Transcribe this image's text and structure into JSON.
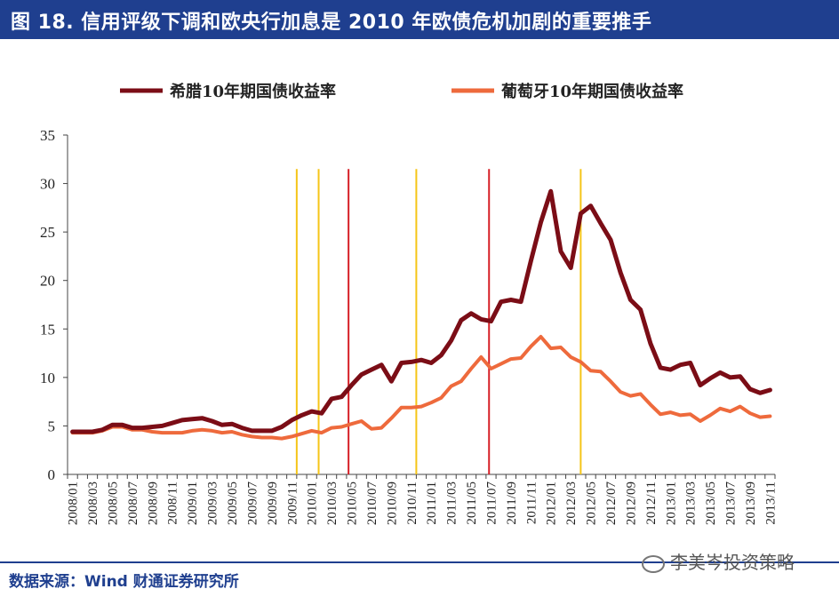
{
  "header": {
    "title": "图 18. 信用评级下调和欧央行加息是 2010 年欧债危机加剧的重要推手"
  },
  "footer": {
    "source": "数据来源：Wind  财通证券研究所",
    "watermark": "李美岑投资策略"
  },
  "colors": {
    "greece": "#7b0d16",
    "portugal": "#ee6a3c",
    "yellow_marker": "#f5c518",
    "red_marker": "#d61f26",
    "title_bg": "#1f3f8f"
  },
  "chart_data": {
    "type": "line",
    "title": "",
    "xlabel": "",
    "ylabel": "",
    "ylim": [
      0,
      35
    ],
    "yticks": [
      0,
      5,
      10,
      15,
      20,
      25,
      30,
      35
    ],
    "x_tick_labels": [
      "2008/01",
      "2008/03",
      "2008/05",
      "2008/07",
      "2008/09",
      "2008/11",
      "2009/01",
      "2009/03",
      "2009/05",
      "2009/07",
      "2009/09",
      "2009/11",
      "2010/01",
      "2010/03",
      "2010/05",
      "2010/07",
      "2010/09",
      "2010/11",
      "2011/01",
      "2011/03",
      "2011/05",
      "2011/07",
      "2011/09",
      "2011/11",
      "2012/01",
      "2012/03",
      "2012/05",
      "2012/07",
      "2012/09",
      "2012/11",
      "2013/01",
      "2013/03",
      "2013/05",
      "2013/07",
      "2013/09",
      "2013/11"
    ],
    "legend": [
      "希腊10年期国债收益率",
      "葡萄牙10年期国债收益率"
    ],
    "series": [
      {
        "name": "希腊10年期国债收益率",
        "color": "#7b0d16",
        "values": [
          4.4,
          4.4,
          4.4,
          4.6,
          5.1,
          5.1,
          4.8,
          4.8,
          4.9,
          5.0,
          5.3,
          5.6,
          5.7,
          5.8,
          5.5,
          5.1,
          5.2,
          4.8,
          4.5,
          4.5,
          4.5,
          4.9,
          5.6,
          6.1,
          6.5,
          6.3,
          7.8,
          8.0,
          9.2,
          10.3,
          10.8,
          11.3,
          9.6,
          11.5,
          11.6,
          11.8,
          11.5,
          12.3,
          13.8,
          15.9,
          16.6,
          16.0,
          15.8,
          17.8,
          18.0,
          17.8,
          22.0,
          26.0,
          29.2,
          23.0,
          21.3,
          26.9,
          27.7,
          25.9,
          24.2,
          20.8,
          18.0,
          17.0,
          13.5,
          11.0,
          10.8,
          11.3,
          11.5,
          9.2,
          9.9,
          10.5,
          10.0,
          10.1,
          8.8,
          8.4,
          8.7
        ]
      },
      {
        "name": "葡萄牙10年期国债收益率",
        "color": "#ee6a3c",
        "values": [
          4.3,
          4.3,
          4.3,
          4.5,
          4.9,
          4.9,
          4.6,
          4.6,
          4.4,
          4.3,
          4.3,
          4.3,
          4.5,
          4.6,
          4.5,
          4.3,
          4.4,
          4.1,
          3.9,
          3.8,
          3.8,
          3.7,
          3.9,
          4.2,
          4.5,
          4.3,
          4.8,
          4.9,
          5.2,
          5.5,
          4.7,
          4.8,
          5.8,
          6.9,
          6.9,
          7.0,
          7.4,
          7.9,
          9.1,
          9.6,
          10.9,
          12.1,
          10.9,
          11.4,
          11.9,
          12.0,
          13.2,
          14.2,
          13.0,
          13.1,
          12.1,
          11.6,
          10.7,
          10.6,
          9.6,
          8.5,
          8.1,
          8.3,
          7.2,
          6.2,
          6.4,
          6.1,
          6.2,
          5.5,
          6.1,
          6.8,
          6.5,
          7.0,
          6.3,
          5.9,
          6.0
        ]
      }
    ],
    "vertical_markers": [
      {
        "position_month": 23.0,
        "color": "yellow"
      },
      {
        "position_month": 25.2,
        "color": "yellow"
      },
      {
        "position_month": 28.2,
        "color": "red"
      },
      {
        "position_month": 35.0,
        "color": "yellow"
      },
      {
        "position_month": 42.3,
        "color": "red"
      },
      {
        "position_month": 51.5,
        "color": "yellow"
      }
    ]
  }
}
